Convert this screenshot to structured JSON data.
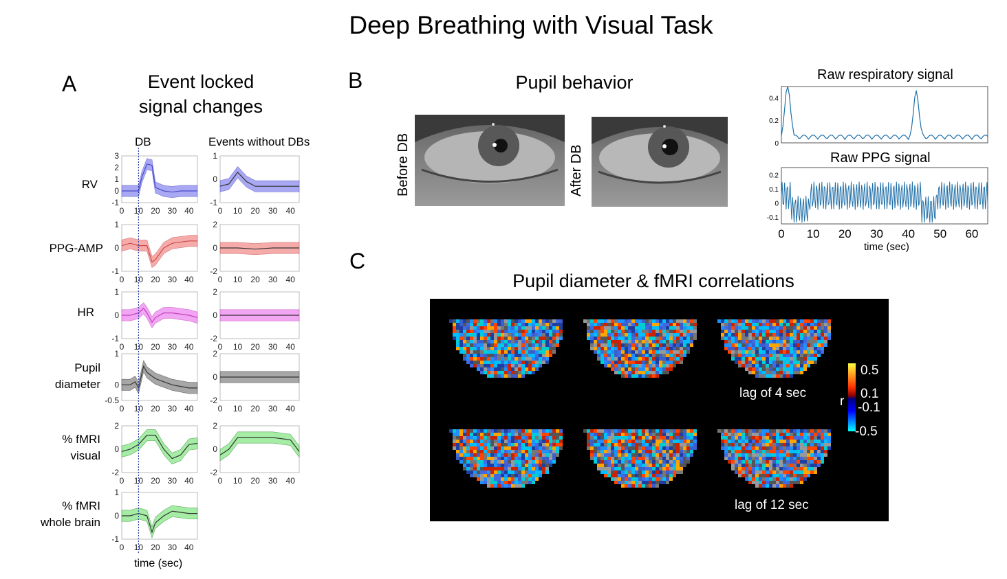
{
  "title": "Deep Breathing with Visual Task",
  "panelA": {
    "letter": "A",
    "heading_line1": "Event locked",
    "heading_line2": "signal changes",
    "col_db": "DB",
    "col_events": "Events without DBs",
    "xticks": [
      "0",
      "10",
      "20",
      "30",
      "40"
    ],
    "xlabel": "time (sec)",
    "rows": [
      {
        "label1": "RV",
        "label2": "",
        "color": "#4a4ac8",
        "fill": "#8c8cf0",
        "db_yticks": [
          "3",
          "2",
          "1",
          "0",
          "-1"
        ],
        "ev_yticks": [
          "1",
          "0",
          "-1"
        ]
      },
      {
        "label1": "PPG-AMP",
        "label2": "",
        "color": "#c84a4a",
        "fill": "#f39090",
        "db_yticks": [
          "1",
          "0",
          "-1"
        ],
        "ev_yticks": [
          "2",
          "0",
          "-2"
        ]
      },
      {
        "label1": "HR",
        "label2": "",
        "color": "#c040c0",
        "fill": "#ee88ee",
        "db_yticks": [
          "1",
          "0",
          "-1"
        ],
        "ev_yticks": [
          "2",
          "0",
          "-2"
        ]
      },
      {
        "label1": "Pupil",
        "label2": "diameter",
        "color": "#333333",
        "fill": "#8a8a8a",
        "db_yticks": [
          "1",
          "0",
          "-0.5"
        ],
        "ev_yticks": [
          "2",
          "0",
          "-2"
        ]
      },
      {
        "label1": "% fMRI",
        "label2": "visual",
        "color": "#2a8a2a",
        "fill": "#88e888",
        "db_yticks": [
          "2",
          "0",
          "-2"
        ],
        "ev_yticks": [
          "2",
          "0",
          "-2"
        ]
      },
      {
        "label1": "% fMRI",
        "label2": "whole brain",
        "color": "#2a8a2a",
        "fill": "#88e888",
        "db_yticks": [
          "1",
          "0",
          "-1"
        ],
        "ev_yticks": []
      }
    ]
  },
  "panelB": {
    "letter": "B",
    "heading": "Pupil behavior",
    "before_label": "Before DB",
    "after_label": "After DB",
    "resp_title": "Raw respiratory signal",
    "resp_yticks": [
      "0.4",
      "0.2",
      "0"
    ],
    "ppg_title": "Raw PPG signal",
    "ppg_yticks": [
      "0.2",
      "0.1",
      "0",
      "-0.1"
    ],
    "xticks": [
      "0",
      "10",
      "20",
      "30",
      "40",
      "50",
      "60"
    ],
    "xlabel": "time (sec)",
    "resp_color": "#1f6fa8",
    "ppg_color": "#1f6fa8"
  },
  "panelC": {
    "letter": "C",
    "heading": "Pupil diameter & fMRI correlations",
    "lag1": "lag of 4 sec",
    "lag2": "lag of 12 sec",
    "colorbar": {
      "r_label": "r",
      "top": "0.5",
      "upper_mid": "0.1",
      "lower_mid": "-0.1",
      "bottom": "-0.5"
    }
  },
  "chart_data": [
    {
      "type": "line",
      "title": "RV (DB)",
      "x": [
        0,
        5,
        10,
        12,
        15,
        18,
        20,
        25,
        30,
        35,
        40,
        45
      ],
      "values": [
        0,
        0,
        0,
        1.2,
        2.3,
        2.2,
        0.3,
        0,
        -0.1,
        0,
        0,
        0
      ],
      "ylim": [
        -1,
        3
      ],
      "xlabel": "time (sec)"
    },
    {
      "type": "line",
      "title": "RV (Events without DBs)",
      "x": [
        0,
        5,
        10,
        15,
        20,
        30,
        40,
        45
      ],
      "values": [
        -0.3,
        -0.2,
        0.3,
        -0.1,
        -0.3,
        -0.3,
        -0.3,
        -0.3
      ],
      "ylim": [
        -1,
        1
      ]
    },
    {
      "type": "line",
      "title": "PPG-AMP (DB)",
      "x": [
        0,
        5,
        10,
        15,
        18,
        20,
        25,
        30,
        40,
        45
      ],
      "values": [
        0.1,
        0.2,
        0.1,
        0.1,
        -0.6,
        -0.5,
        0,
        0.2,
        0.3,
        0.3
      ],
      "ylim": [
        -1,
        1
      ]
    },
    {
      "type": "line",
      "title": "PPG-AMP (Events without DBs)",
      "x": [
        0,
        10,
        20,
        30,
        40,
        45
      ],
      "values": [
        0,
        0,
        -0.1,
        0,
        0,
        0
      ],
      "ylim": [
        -2,
        2
      ]
    },
    {
      "type": "line",
      "title": "HR (DB)",
      "x": [
        0,
        5,
        10,
        13,
        15,
        18,
        20,
        25,
        30,
        40,
        45
      ],
      "values": [
        0,
        0,
        0.1,
        0.3,
        0.1,
        -0.3,
        -0.1,
        0.1,
        0.1,
        0,
        -0.1
      ],
      "ylim": [
        -1,
        1
      ]
    },
    {
      "type": "line",
      "title": "HR (Events without DBs)",
      "x": [
        0,
        10,
        20,
        30,
        40,
        45
      ],
      "values": [
        0,
        0,
        0,
        0,
        0,
        0
      ],
      "ylim": [
        -2,
        2
      ]
    },
    {
      "type": "line",
      "title": "Pupil diameter (DB)",
      "x": [
        0,
        5,
        8,
        10,
        13,
        15,
        20,
        25,
        30,
        40,
        45
      ],
      "values": [
        0,
        0,
        0.1,
        -0.1,
        0.6,
        0.4,
        0.2,
        0.1,
        0,
        -0.1,
        -0.1
      ],
      "ylim": [
        -0.5,
        1
      ]
    },
    {
      "type": "line",
      "title": "Pupil diameter (Events without DBs)",
      "x": [
        0,
        10,
        20,
        30,
        40,
        45
      ],
      "values": [
        0,
        0,
        0,
        0,
        0,
        0
      ],
      "ylim": [
        -2,
        2
      ]
    },
    {
      "type": "line",
      "title": "% fMRI visual (DB)",
      "x": [
        0,
        5,
        10,
        15,
        20,
        25,
        30,
        35,
        40,
        45
      ],
      "values": [
        -0.2,
        0,
        0.4,
        1.2,
        1.2,
        0,
        -0.8,
        -0.5,
        0.4,
        0.5
      ],
      "ylim": [
        -2,
        2
      ]
    },
    {
      "type": "line",
      "title": "% fMRI visual (Events without DBs)",
      "x": [
        0,
        5,
        10,
        20,
        30,
        40,
        45
      ],
      "values": [
        -0.5,
        0,
        1,
        1,
        1,
        0.8,
        -0.2
      ],
      "ylim": [
        -2,
        2
      ]
    },
    {
      "type": "line",
      "title": "% fMRI whole brain (DB)",
      "x": [
        0,
        5,
        10,
        15,
        18,
        20,
        25,
        30,
        40,
        45
      ],
      "values": [
        0,
        0,
        0.1,
        0,
        -0.7,
        -0.3,
        0,
        0.2,
        0.1,
        0.1
      ],
      "ylim": [
        -1,
        1
      ]
    },
    {
      "type": "line",
      "title": "Raw respiratory signal",
      "x": [
        0,
        2,
        5,
        10,
        15,
        20,
        30,
        40,
        42,
        45,
        50,
        60,
        65
      ],
      "values": [
        0.2,
        0.5,
        0.05,
        0.1,
        0.1,
        0.05,
        0.05,
        0.1,
        0.45,
        0.05,
        0.05,
        0.05,
        0.02
      ],
      "ylim": [
        0,
        0.5
      ]
    },
    {
      "type": "line",
      "title": "Raw PPG signal",
      "x": [
        0,
        5,
        10,
        20,
        30,
        40,
        45,
        50,
        60,
        65
      ],
      "values": [
        0.1,
        -0.1,
        0,
        0.1,
        0.1,
        0.1,
        -0.1,
        0.1,
        0.1,
        0.1
      ],
      "ylim": [
        -0.15,
        0.25
      ],
      "xlabel": "time (sec)"
    }
  ]
}
